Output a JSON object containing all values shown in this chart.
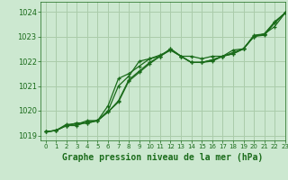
{
  "background_color": "#cce8d0",
  "grid_color": "#aaccaa",
  "line_color": "#1a6b1a",
  "xlabel": "Graphe pression niveau de la mer (hPa)",
  "xlabel_fontsize": 7,
  "ylim": [
    1018.8,
    1024.4
  ],
  "xlim": [
    -0.5,
    23
  ],
  "yticks": [
    1019,
    1020,
    1021,
    1022,
    1023,
    1024
  ],
  "xticks": [
    0,
    1,
    2,
    3,
    4,
    5,
    6,
    7,
    8,
    9,
    10,
    11,
    12,
    13,
    14,
    15,
    16,
    17,
    18,
    19,
    20,
    21,
    22,
    23
  ],
  "series": [
    [
      1019.15,
      1019.2,
      1019.4,
      1019.4,
      1019.55,
      1019.6,
      1020.2,
      1021.3,
      1021.5,
      1021.8,
      1022.1,
      1022.25,
      1022.45,
      1022.2,
      1021.95,
      1021.95,
      1022.05,
      1022.2,
      1022.35,
      1022.5,
      1023.0,
      1023.1,
      1023.55,
      1023.95
    ],
    [
      1019.15,
      1019.2,
      1019.4,
      1019.5,
      1019.5,
      1019.6,
      1019.95,
      1020.4,
      1021.25,
      1021.6,
      1021.95,
      1022.2,
      1022.5,
      1022.2,
      1021.95,
      1021.95,
      1022.05,
      1022.2,
      1022.3,
      1022.5,
      1023.0,
      1023.1,
      1023.6,
      1023.95
    ],
    [
      1019.15,
      1019.2,
      1019.4,
      1019.5,
      1019.5,
      1019.6,
      1019.95,
      1020.35,
      1021.2,
      1021.55,
      1021.9,
      1022.2,
      1022.5,
      1022.2,
      1021.95,
      1021.95,
      1022.0,
      1022.2,
      1022.3,
      1022.5,
      1023.0,
      1023.05,
      1023.55,
      1023.95
    ],
    [
      1019.15,
      1019.2,
      1019.45,
      1019.45,
      1019.6,
      1019.6,
      1020.0,
      1021.0,
      1021.4,
      1022.0,
      1022.1,
      1022.2,
      1022.45,
      1022.2,
      1022.2,
      1022.1,
      1022.2,
      1022.2,
      1022.45,
      1022.5,
      1023.05,
      1023.1,
      1023.4,
      1023.95
    ]
  ]
}
